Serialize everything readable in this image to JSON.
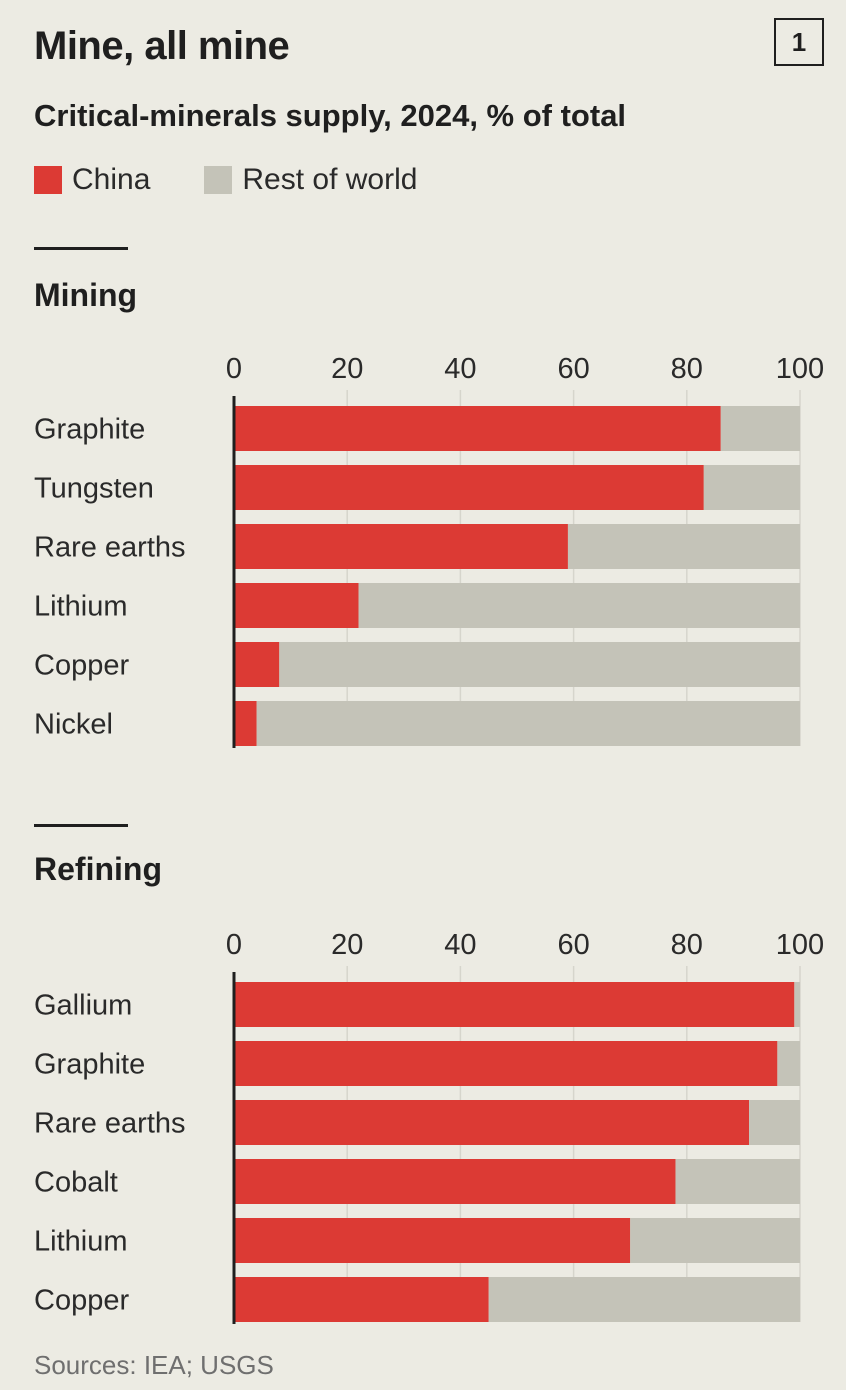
{
  "header": {
    "title": "Mine, all mine",
    "badge": "1",
    "subtitle": "Critical-minerals supply, 2024, % of total"
  },
  "legend": [
    {
      "label": "China",
      "color": "#dc3a34"
    },
    {
      "label": "Rest of world",
      "color": "#c4c3b8"
    }
  ],
  "footnote": "Sources: IEA; USGS",
  "chart_data": [
    {
      "type": "bar",
      "title": "Mining",
      "orientation": "horizontal",
      "stacked": true,
      "categories": [
        "Graphite",
        "Tungsten",
        "Rare earths",
        "Lithium",
        "Copper",
        "Nickel"
      ],
      "series": [
        {
          "name": "China",
          "values": [
            86,
            83,
            59,
            22,
            8,
            4
          ]
        },
        {
          "name": "Rest of world",
          "values": [
            14,
            17,
            41,
            78,
            92,
            96
          ]
        }
      ],
      "xlim": [
        0,
        100
      ],
      "xticks": [
        0,
        20,
        40,
        60,
        80,
        100
      ]
    },
    {
      "type": "bar",
      "title": "Refining",
      "orientation": "horizontal",
      "stacked": true,
      "categories": [
        "Gallium",
        "Graphite",
        "Rare earths",
        "Cobalt",
        "Lithium",
        "Copper"
      ],
      "series": [
        {
          "name": "China",
          "values": [
            99,
            96,
            91,
            78,
            70,
            45
          ]
        },
        {
          "name": "Rest of world",
          "values": [
            1,
            4,
            9,
            22,
            30,
            55
          ]
        }
      ],
      "xlim": [
        0,
        100
      ],
      "xticks": [
        0,
        20,
        40,
        60,
        80,
        100
      ]
    }
  ]
}
